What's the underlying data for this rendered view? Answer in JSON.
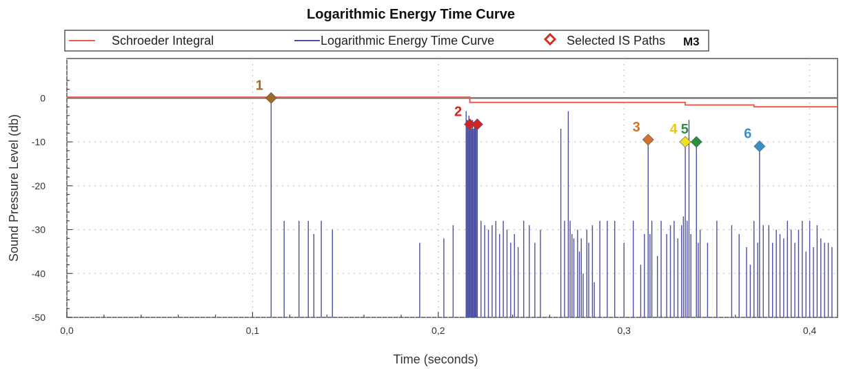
{
  "chart_data": {
    "type": "line",
    "title": "Logarithmic Energy Time Curve",
    "xlabel": "Time (seconds)",
    "ylabel": "Sound Pressure Level (db)",
    "xlim": [
      0,
      0.415
    ],
    "ylim": [
      -50,
      9
    ],
    "x_ticks": [
      0.0,
      0.1,
      0.2,
      0.3,
      0.4
    ],
    "x_tick_labels": [
      "0,0",
      "0,1",
      "0,2",
      "0,3",
      "0,4"
    ],
    "y_ticks": [
      0,
      -10,
      -20,
      -30,
      -40,
      -50
    ],
    "y_tick_labels": [
      "0",
      "-10",
      "-20",
      "-30",
      "-40",
      "-50"
    ],
    "legend": {
      "position": "top",
      "badge": "M3",
      "entries": [
        {
          "label": "Schroeder Integral",
          "color": "#e8604c",
          "marker": "line"
        },
        {
          "label": "Logarithmic Energy Time Curve",
          "color": "#4a4fa3",
          "marker": "line"
        },
        {
          "label": "Selected IS Paths",
          "color": "#d72c2c",
          "marker": "diamond"
        }
      ]
    },
    "series": [
      {
        "name": "Schroeder Integral",
        "color": "#e8604c",
        "x": [
          0.0,
          0.217,
          0.217,
          0.333,
          0.333,
          0.37,
          0.37,
          0.415
        ],
        "y": [
          0.2,
          0.2,
          -1.0,
          -1.0,
          -1.6,
          -1.6,
          -2.0,
          -2.0
        ]
      },
      {
        "name": "Logarithmic Energy Time Curve",
        "color": "#4a4fa3",
        "impulses": [
          [
            0.11,
            0
          ],
          [
            0.117,
            -28
          ],
          [
            0.125,
            -28
          ],
          [
            0.13,
            -28
          ],
          [
            0.133,
            -31
          ],
          [
            0.137,
            -28
          ],
          [
            0.143,
            -30
          ],
          [
            0.19,
            -33
          ],
          [
            0.203,
            -32
          ],
          [
            0.208,
            -29
          ],
          [
            0.215,
            -3
          ],
          [
            0.2155,
            -5
          ],
          [
            0.216,
            -6
          ],
          [
            0.2165,
            -4
          ],
          [
            0.217,
            -6
          ],
          [
            0.2175,
            -5
          ],
          [
            0.218,
            -7
          ],
          [
            0.2185,
            -5
          ],
          [
            0.219,
            -7
          ],
          [
            0.2195,
            -6
          ],
          [
            0.22,
            -6
          ],
          [
            0.2205,
            -5
          ],
          [
            0.221,
            -7
          ],
          [
            0.223,
            -28
          ],
          [
            0.225,
            -29
          ],
          [
            0.227,
            -30
          ],
          [
            0.229,
            -29
          ],
          [
            0.231,
            -28
          ],
          [
            0.233,
            -31
          ],
          [
            0.235,
            -28
          ],
          [
            0.237,
            -30
          ],
          [
            0.239,
            -33
          ],
          [
            0.241,
            -31
          ],
          [
            0.243,
            -34
          ],
          [
            0.246,
            -28
          ],
          [
            0.249,
            -29
          ],
          [
            0.252,
            -33
          ],
          [
            0.255,
            -30
          ],
          [
            0.266,
            -7
          ],
          [
            0.268,
            -28
          ],
          [
            0.27,
            -3
          ],
          [
            0.271,
            -28
          ],
          [
            0.272,
            -31
          ],
          [
            0.273,
            -32
          ],
          [
            0.275,
            -30
          ],
          [
            0.276,
            -35
          ],
          [
            0.277,
            -32
          ],
          [
            0.278,
            -40
          ],
          [
            0.28,
            -30
          ],
          [
            0.281,
            -33
          ],
          [
            0.283,
            -29
          ],
          [
            0.284,
            -42
          ],
          [
            0.287,
            -28
          ],
          [
            0.291,
            -28
          ],
          [
            0.295,
            -28
          ],
          [
            0.3,
            -33
          ],
          [
            0.305,
            -28
          ],
          [
            0.309,
            -38
          ],
          [
            0.311,
            -31
          ],
          [
            0.313,
            -9.5
          ],
          [
            0.314,
            -31
          ],
          [
            0.315,
            -28
          ],
          [
            0.318,
            -36
          ],
          [
            0.32,
            -28
          ],
          [
            0.323,
            -31
          ],
          [
            0.325,
            -29
          ],
          [
            0.327,
            -28
          ],
          [
            0.329,
            -32
          ],
          [
            0.331,
            -29
          ],
          [
            0.332,
            -27
          ],
          [
            0.333,
            -10
          ],
          [
            0.334,
            -28
          ],
          [
            0.335,
            -5
          ],
          [
            0.336,
            -31
          ],
          [
            0.339,
            -10
          ],
          [
            0.34,
            -33
          ],
          [
            0.341,
            -30
          ],
          [
            0.345,
            -33
          ],
          [
            0.35,
            -28
          ],
          [
            0.358,
            -29
          ],
          [
            0.362,
            -31
          ],
          [
            0.366,
            -34
          ],
          [
            0.368,
            -38
          ],
          [
            0.37,
            -28
          ],
          [
            0.372,
            -33
          ],
          [
            0.373,
            -11
          ],
          [
            0.375,
            -29
          ],
          [
            0.378,
            -29
          ],
          [
            0.38,
            -33
          ],
          [
            0.382,
            -30
          ],
          [
            0.384,
            -31
          ],
          [
            0.386,
            -32
          ],
          [
            0.388,
            -28
          ],
          [
            0.39,
            -30
          ],
          [
            0.392,
            -33
          ],
          [
            0.394,
            -30
          ],
          [
            0.396,
            -28
          ],
          [
            0.398,
            -35
          ],
          [
            0.4,
            -28
          ],
          [
            0.402,
            -34
          ],
          [
            0.404,
            -29
          ],
          [
            0.406,
            -32
          ],
          [
            0.408,
            -33
          ],
          [
            0.41,
            -33
          ],
          [
            0.412,
            -34
          ]
        ]
      }
    ],
    "baseline_y": 0,
    "selected_is_paths": [
      {
        "label": "1",
        "x": 0.11,
        "y": 0,
        "color": "#9a6b2a",
        "label_color": "#9a6b2a"
      },
      {
        "label": "2",
        "x": 0.217,
        "y": -6,
        "color": "#d42222",
        "label_color": "#d42222",
        "second_x": 0.221
      },
      {
        "label": "3",
        "x": 0.313,
        "y": -9.5,
        "color": "#d4702a",
        "label_color": "#d4702a"
      },
      {
        "label": "4",
        "x": 0.333,
        "y": -10,
        "color": "#f0e020",
        "label_color": "#e8c820"
      },
      {
        "label": "5",
        "x": 0.339,
        "y": -10,
        "color": "#2a9040",
        "label_color": "#2a9040"
      },
      {
        "label": "6",
        "x": 0.373,
        "y": -11,
        "color": "#3a8fc8",
        "label_color": "#3a8fc8"
      }
    ]
  }
}
